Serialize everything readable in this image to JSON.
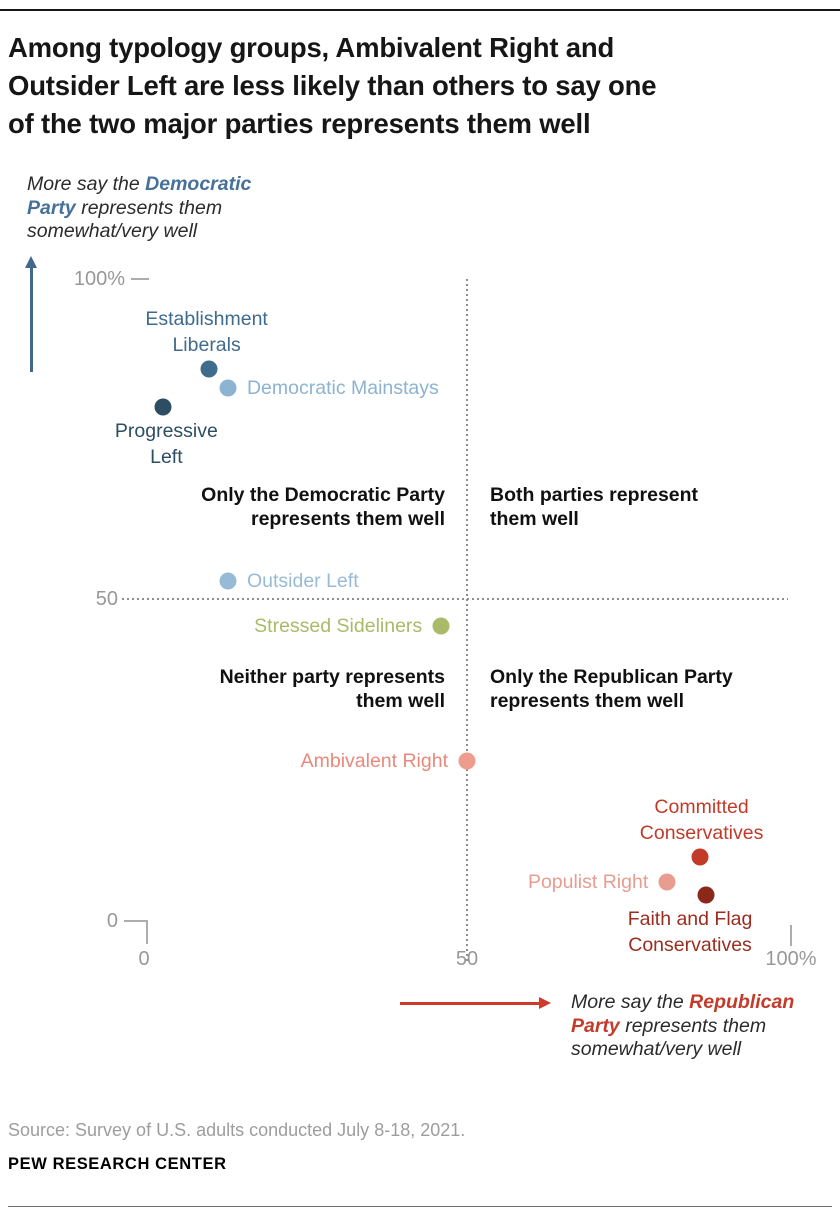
{
  "chart_data": {
    "type": "scatter",
    "title": "Among typology groups, Ambivalent Right and\nOutsider Left are less likely than others to say one\nof the two major parties represents them well",
    "xlim": [
      0,
      100
    ],
    "ylim": [
      0,
      100
    ],
    "grid": "dotted crosshair at x=50 and y=50",
    "x_ticks": [
      {
        "label": "0",
        "value": 0
      },
      {
        "label": "50",
        "value": 50
      },
      {
        "label": "100%",
        "value": 100
      }
    ],
    "y_ticks": [
      {
        "label": "100%",
        "value": 100
      },
      {
        "label": "50",
        "value": 50
      },
      {
        "label": "0",
        "value": 0
      }
    ],
    "x_axis_meaning": "% who say the Republican Party represents them somewhat/very well",
    "y_axis_meaning": "% who say the Democratic Party represents them somewhat/very well",
    "quadrant_labels": {
      "top_left": "Only the Democratic Party\nrepresents them well",
      "top_right": "Both parties represent\nthem well",
      "bottom_left": "Neither party represents\nthem well",
      "bottom_right": "Only the Republican Party\nrepresents them well"
    },
    "points": [
      {
        "name": "Progressive Left",
        "x": 3,
        "y": 80,
        "color": "#2d4e62",
        "label_lines": [
          "Progressive",
          "Left"
        ],
        "label_pos": "below",
        "dx": 3
      },
      {
        "name": "Establishment Liberals",
        "x": 10,
        "y": 86,
        "color": "#3f6b8d",
        "label_lines": [
          "Establishment",
          "Liberals"
        ],
        "label_pos": "above",
        "dx": -2
      },
      {
        "name": "Democratic Mainstays",
        "x": 13,
        "y": 83,
        "color": "#8cb3d1",
        "label_lines": [
          "Democratic Mainstays"
        ],
        "label_pos": "right"
      },
      {
        "name": "Outsider Left",
        "x": 13,
        "y": 53,
        "color": "#97bbd6",
        "label_lines": [
          "Outsider Left"
        ],
        "label_pos": "right"
      },
      {
        "name": "Stressed Sideliners",
        "x": 46,
        "y": 46,
        "color": "#a9ba68",
        "label_lines": [
          "Stressed Sideliners"
        ],
        "label_pos": "left"
      },
      {
        "name": "Ambivalent Right",
        "x": 50,
        "y": 25,
        "color": "#ee9c8d",
        "label_color": "#e8897a",
        "label_lines": [
          "Ambivalent Right"
        ],
        "label_pos": "left"
      },
      {
        "name": "Committed Conservatives",
        "x": 86,
        "y": 10,
        "color": "#c23a28",
        "label_lines": [
          "Committed",
          "Conservatives"
        ],
        "label_pos": "above",
        "dx": 2
      },
      {
        "name": "Populist Right",
        "x": 81,
        "y": 6,
        "color": "#e79d8f",
        "label_lines": [
          "Populist Right"
        ],
        "label_pos": "left"
      },
      {
        "name": "Faith and Flag Conservatives",
        "x": 87,
        "y": 4,
        "color": "#8c2819",
        "label_color": "#9b2d1f",
        "label_lines": [
          "Faith and Flag",
          "Conservatives"
        ],
        "label_pos": "below",
        "dx": -16
      }
    ],
    "annotations": {
      "dem": {
        "accent_color": "#47719a",
        "lines": [
          [
            {
              "t": "More say the ",
              "b": false
            },
            {
              "t": "Democratic",
              "b": true
            }
          ],
          [
            {
              "t": "Party",
              "b": true
            },
            {
              "t": " represents them",
              "b": false
            }
          ],
          [
            {
              "t": "somewhat/very well",
              "b": false
            }
          ]
        ]
      },
      "rep": {
        "accent_color": "#c43b2b",
        "lines": [
          [
            {
              "t": "More say the ",
              "b": false
            },
            {
              "t": "Republican",
              "b": true
            }
          ],
          [
            {
              "t": "Party",
              "b": true
            },
            {
              "t": " represents them",
              "b": false
            }
          ],
          [
            {
              "t": "somewhat/very well",
              "b": false
            }
          ]
        ]
      }
    }
  },
  "footer": {
    "source": "Source: Survey of U.S. adults conducted July 8-18, 2021.",
    "brand": "PEW RESEARCH CENTER"
  }
}
